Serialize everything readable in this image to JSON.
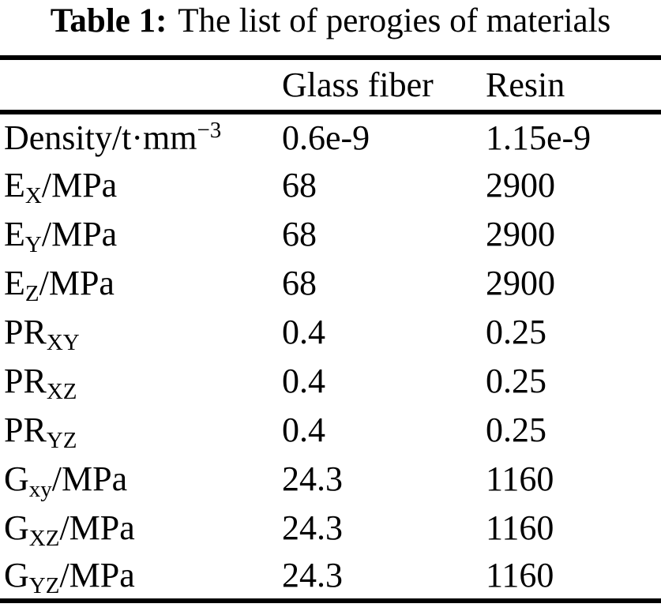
{
  "caption": {
    "label": "Table 1:",
    "text": "The list of perogies of materials"
  },
  "table": {
    "header": {
      "property_column": "",
      "columns": [
        "Glass fiber",
        "Resin"
      ]
    },
    "rows": [
      {
        "property": [
          {
            "text": "Density/t·mm"
          },
          {
            "text": "−3",
            "style": "sup"
          }
        ],
        "glass_fiber": "0.6e-9",
        "resin": "1.15e-9"
      },
      {
        "property": [
          {
            "text": "E"
          },
          {
            "text": "X",
            "style": "sub"
          },
          {
            "text": "/MPa"
          }
        ],
        "glass_fiber": "68",
        "resin": "2900"
      },
      {
        "property": [
          {
            "text": "E"
          },
          {
            "text": "Y",
            "style": "sub"
          },
          {
            "text": "/MPa"
          }
        ],
        "glass_fiber": "68",
        "resin": "2900"
      },
      {
        "property": [
          {
            "text": "E"
          },
          {
            "text": "Z",
            "style": "sub"
          },
          {
            "text": "/MPa"
          }
        ],
        "glass_fiber": "68",
        "resin": "2900"
      },
      {
        "property": [
          {
            "text": "PR"
          },
          {
            "text": "XY",
            "style": "sub"
          }
        ],
        "glass_fiber": "0.4",
        "resin": "0.25"
      },
      {
        "property": [
          {
            "text": "PR"
          },
          {
            "text": "XZ",
            "style": "sub"
          }
        ],
        "glass_fiber": "0.4",
        "resin": "0.25"
      },
      {
        "property": [
          {
            "text": "PR"
          },
          {
            "text": "YZ",
            "style": "sub"
          }
        ],
        "glass_fiber": "0.4",
        "resin": "0.25"
      },
      {
        "property": [
          {
            "text": "G"
          },
          {
            "text": "xy",
            "style": "sub"
          },
          {
            "text": "/MPa"
          }
        ],
        "glass_fiber": "24.3",
        "resin": "1160"
      },
      {
        "property": [
          {
            "text": "G"
          },
          {
            "text": "XZ",
            "style": "sub"
          },
          {
            "text": "/MPa"
          }
        ],
        "glass_fiber": "24.3",
        "resin": "1160"
      },
      {
        "property": [
          {
            "text": "G"
          },
          {
            "text": "YZ",
            "style": "sub"
          },
          {
            "text": "/MPa"
          }
        ],
        "glass_fiber": "24.3",
        "resin": "1160"
      }
    ]
  }
}
